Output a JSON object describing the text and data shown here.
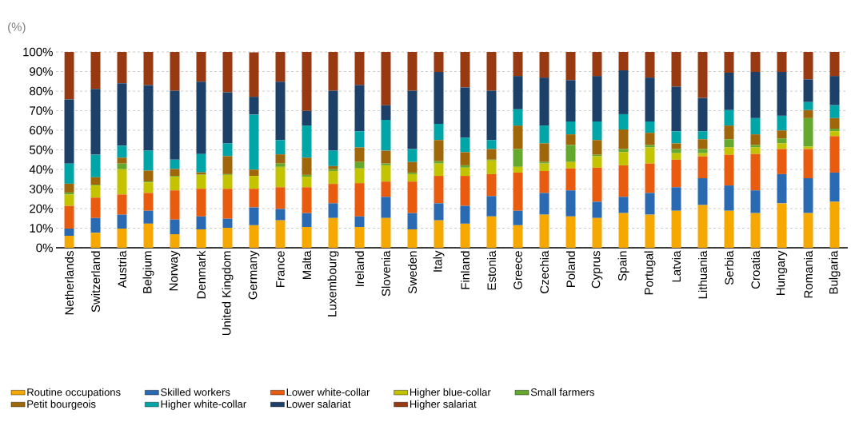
{
  "chart_data": {
    "type": "bar",
    "stacked": true,
    "ylabel": "(%)",
    "categories": [
      "Netherlands",
      "Switzerland",
      "Austria",
      "Belgium",
      "Norway",
      "Denmark",
      "United Kingdom",
      "Germany",
      "France",
      "Malta",
      "Luxembourg",
      "Ireland",
      "Slovenia",
      "Sweden",
      "Italy",
      "Finland",
      "Estonia",
      "Greece",
      "Czechia",
      "Poland",
      "Cyprus",
      "Spain",
      "Portugal",
      "Latvia",
      "Lithuania",
      "Serbia",
      "Croatia",
      "Hungary",
      "Romania",
      "Bulgaria"
    ],
    "series": [
      {
        "name": "Routine occupations",
        "color": "#f5a800",
        "values": [
          6.1,
          7.7,
          9.8,
          12.3,
          6.9,
          9.4,
          10.2,
          11.5,
          14.0,
          10.6,
          15.2,
          10.6,
          15.2,
          9.4,
          14.0,
          12.3,
          16.0,
          11.5,
          16.9,
          16.0,
          15.2,
          17.7,
          16.9,
          18.9,
          21.8,
          18.9,
          17.7,
          22.7,
          17.7,
          23.5
        ]
      },
      {
        "name": "Skilled workers",
        "color": "#2a6ab3",
        "values": [
          3.7,
          7.5,
          7.1,
          6.6,
          7.5,
          6.6,
          4.6,
          9.1,
          5.8,
          7.1,
          7.5,
          5.4,
          10.8,
          8.3,
          8.7,
          9.1,
          10.4,
          7.4,
          11.1,
          13.3,
          8.3,
          8.3,
          11.1,
          12.0,
          13.7,
          12.9,
          11.6,
          14.9,
          17.8,
          14.9
        ]
      },
      {
        "name": "Lower white-collar",
        "color": "#e95b0f",
        "values": [
          11.6,
          10.4,
          10.3,
          9.1,
          14.9,
          14.1,
          15.3,
          9.5,
          11.1,
          13.2,
          9.9,
          17.0,
          7.8,
          16.1,
          14.0,
          15.3,
          11.2,
          19.5,
          11.2,
          11.2,
          17.4,
          16.1,
          15.0,
          14.1,
          11.2,
          15.7,
          18.6,
          12.8,
          14.9,
          18.6
        ]
      },
      {
        "name": "Higher blue-collar",
        "color": "#c4c300",
        "values": [
          5.8,
          6.2,
          12.9,
          5.4,
          7.0,
          7.1,
          7.1,
          6.6,
          10.4,
          5.4,
          6.6,
          7.5,
          8.3,
          3.8,
          6.3,
          4.2,
          7.0,
          2.9,
          3.8,
          3.3,
          5.8,
          6.7,
          8.2,
          3.3,
          1.6,
          3.7,
          3.3,
          2.9,
          1.3,
          2.5
        ]
      },
      {
        "name": "Small farmers",
        "color": "#64a82d",
        "values": [
          1.0,
          0.4,
          2.9,
          0.4,
          0.4,
          0.2,
          0.4,
          null,
          1.7,
          0.9,
          0.9,
          3.3,
          0.9,
          0.8,
          1.2,
          1.2,
          0.4,
          9.1,
          0.8,
          8.7,
          0.8,
          1.6,
          1.3,
          2.1,
          2.1,
          4.2,
          1.3,
          2.5,
          14.5,
          1.3
        ]
      },
      {
        "name": "Petit bourgeois",
        "color": "#a0670a",
        "values": [
          4.5,
          3.8,
          3.0,
          5.6,
          3.5,
          1.1,
          9.2,
          3.2,
          4.7,
          8.8,
          1.6,
          7.4,
          6.6,
          5.4,
          10.8,
          6.7,
          5.4,
          12.0,
          9.5,
          5.4,
          7.5,
          10.0,
          6.2,
          2.9,
          5.0,
          7.0,
          5.4,
          4.1,
          4.1,
          5.4
        ]
      },
      {
        "name": "Higher white-collar",
        "color": "#00a5a8",
        "values": [
          10.3,
          11.5,
          6.1,
          10.2,
          4.8,
          9.4,
          6.5,
          28.1,
          7.3,
          16.4,
          7.9,
          8.3,
          15.7,
          6.6,
          8.3,
          7.4,
          4.6,
          8.3,
          9.1,
          6.6,
          9.5,
          7.8,
          5.8,
          6.2,
          4.1,
          7.9,
          8.3,
          7.5,
          4.1,
          6.6
        ]
      },
      {
        "name": "Lower salariat",
        "color": "#1c4068",
        "values": [
          32.7,
          33.6,
          31.9,
          33.5,
          35.2,
          36.9,
          26.1,
          9.1,
          29.8,
          7.5,
          30.6,
          23.6,
          7.5,
          29.8,
          26.5,
          25.7,
          25.2,
          17.0,
          24.5,
          21.1,
          23.2,
          22.4,
          22.4,
          22.8,
          17.0,
          19.1,
          23.6,
          22.4,
          11.6,
          14.9
        ]
      },
      {
        "name": "Higher salariat",
        "color": "#983912",
        "values": [
          24.3,
          18.9,
          16.0,
          16.9,
          19.8,
          15.2,
          20.6,
          22.7,
          15.2,
          30.1,
          19.8,
          16.9,
          27.2,
          19.8,
          10.2,
          18.1,
          19.8,
          12.3,
          13.1,
          14.4,
          12.3,
          9.4,
          13.1,
          17.7,
          23.5,
          10.6,
          10.2,
          10.2,
          14.0,
          12.3
        ]
      }
    ],
    "ylim": [
      0,
      100
    ],
    "yticks": [
      {
        "value": 0,
        "label": "0%"
      },
      {
        "value": 10,
        "label": "10%"
      },
      {
        "value": 20,
        "label": "20%"
      },
      {
        "value": 30,
        "label": "30%"
      },
      {
        "value": 40,
        "label": "40%"
      },
      {
        "value": 50,
        "label": "50%"
      },
      {
        "value": 60,
        "label": "60%"
      },
      {
        "value": 70,
        "label": "70%"
      },
      {
        "value": 80,
        "label": "80%"
      },
      {
        "value": 90,
        "label": "90%"
      },
      {
        "value": 100,
        "label": "100%"
      }
    ],
    "grid": "y",
    "legend": "bottom"
  }
}
